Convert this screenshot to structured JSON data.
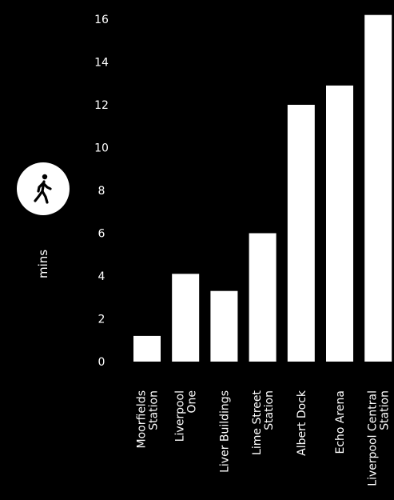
{
  "chart_data": {
    "type": "bar",
    "categories": [
      [
        "Moorfields",
        "Station"
      ],
      [
        "Liverpool",
        "One"
      ],
      [
        "Liver Buildings"
      ],
      [
        "Lime Street",
        "Station"
      ],
      [
        "Albert Dock"
      ],
      [
        "Echo Arena"
      ],
      [
        "Liverpool Central",
        "Station"
      ]
    ],
    "values": [
      1.2,
      4.1,
      3.3,
      6.0,
      12.0,
      12.9,
      16.2
    ],
    "ylabel": "mins",
    "ylim": [
      0,
      16
    ],
    "yticks": [
      0,
      2,
      4,
      6,
      8,
      10,
      12,
      14,
      16
    ],
    "grid": false,
    "icon": "walking-person-icon",
    "colors": {
      "background": "#000000",
      "bar": "#ffffff",
      "text": "#ffffff",
      "icon_bg": "#ffffff",
      "icon_fg": "#000000"
    }
  }
}
